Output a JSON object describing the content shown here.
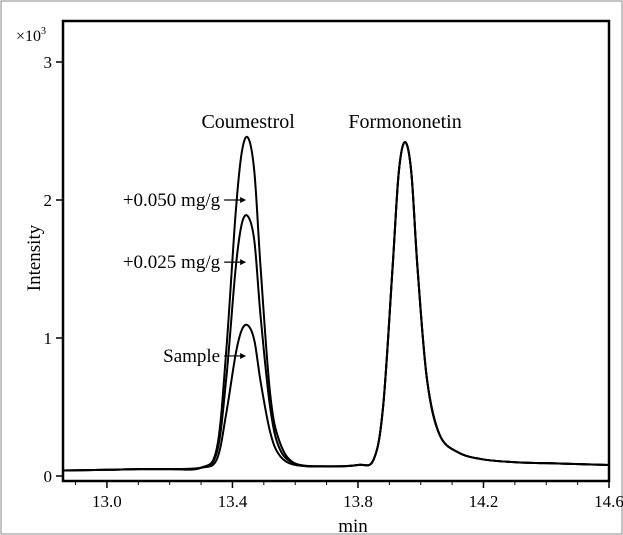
{
  "chart_data": {
    "type": "line",
    "xlabel": "min",
    "ylabel": "Intensity",
    "y_multiplier": "×10",
    "y_multiplier_exp": "3",
    "xlim": [
      12.86,
      14.6
    ],
    "ylim": [
      0,
      3.05
    ],
    "x_ticks": [
      13.0,
      13.4,
      13.8,
      14.2,
      14.6
    ],
    "x_tick_labels": [
      "13.0",
      "13.4",
      "13.8",
      "14.2",
      "14.6"
    ],
    "y_ticks": [
      0,
      1,
      2,
      3
    ],
    "y_tick_labels": [
      "0",
      "1",
      "2",
      "3"
    ],
    "grid": false,
    "peak_labels": [
      {
        "text": "Coumestrol",
        "x": 13.45
      },
      {
        "text": "Formononetin",
        "x": 13.95
      }
    ],
    "series": [
      {
        "name": "+0.050 mg/g",
        "x": [
          12.86,
          13.0,
          13.1,
          13.2,
          13.3,
          13.35,
          13.38,
          13.41,
          13.43,
          13.45,
          13.47,
          13.49,
          13.52,
          13.55,
          13.6,
          13.7,
          13.8,
          13.85,
          13.88,
          13.91,
          13.93,
          13.95,
          13.97,
          13.99,
          14.02,
          14.06,
          14.12,
          14.2,
          14.3,
          14.45,
          14.6
        ],
        "y": [
          0.04,
          0.045,
          0.05,
          0.05,
          0.06,
          0.2,
          0.9,
          1.9,
          2.35,
          2.45,
          2.2,
          1.5,
          0.6,
          0.25,
          0.09,
          0.07,
          0.08,
          0.12,
          0.5,
          1.5,
          2.2,
          2.42,
          2.2,
          1.5,
          0.7,
          0.3,
          0.17,
          0.12,
          0.1,
          0.09,
          0.08
        ]
      },
      {
        "name": "+0.025 mg/g",
        "x": [
          12.86,
          13.0,
          13.1,
          13.2,
          13.3,
          13.35,
          13.38,
          13.41,
          13.43,
          13.45,
          13.47,
          13.49,
          13.52,
          13.55,
          13.6,
          13.7,
          13.8,
          13.85,
          13.88,
          13.91,
          13.93,
          13.95,
          13.97,
          13.99,
          14.02,
          14.06,
          14.12,
          14.2,
          14.3,
          14.45,
          14.6
        ],
        "y": [
          0.04,
          0.045,
          0.05,
          0.05,
          0.06,
          0.17,
          0.7,
          1.5,
          1.83,
          1.88,
          1.7,
          1.15,
          0.5,
          0.2,
          0.09,
          0.07,
          0.08,
          0.12,
          0.5,
          1.5,
          2.2,
          2.42,
          2.2,
          1.5,
          0.7,
          0.3,
          0.17,
          0.12,
          0.1,
          0.09,
          0.08
        ]
      },
      {
        "name": "Sample",
        "x": [
          12.86,
          13.0,
          13.1,
          13.2,
          13.3,
          13.35,
          13.38,
          13.41,
          13.43,
          13.45,
          13.47,
          13.49,
          13.52,
          13.55,
          13.6,
          13.7,
          13.8,
          13.85,
          13.88,
          13.91,
          13.93,
          13.95,
          13.97,
          13.99,
          14.02,
          14.06,
          14.12,
          14.2,
          14.3,
          14.45,
          14.6
        ],
        "y": [
          0.04,
          0.045,
          0.05,
          0.05,
          0.06,
          0.12,
          0.45,
          0.88,
          1.06,
          1.09,
          0.98,
          0.68,
          0.32,
          0.15,
          0.08,
          0.07,
          0.08,
          0.12,
          0.5,
          1.5,
          2.2,
          2.42,
          2.2,
          1.5,
          0.7,
          0.3,
          0.17,
          0.12,
          0.1,
          0.09,
          0.08
        ]
      }
    ],
    "annotations": [
      {
        "text": "+0.050 mg/g",
        "x": 13.45,
        "y": 2.0
      },
      {
        "text": "+0.025 mg/g",
        "x": 13.45,
        "y": 1.55
      },
      {
        "text": "Sample",
        "x": 13.45,
        "y": 0.87
      }
    ]
  }
}
